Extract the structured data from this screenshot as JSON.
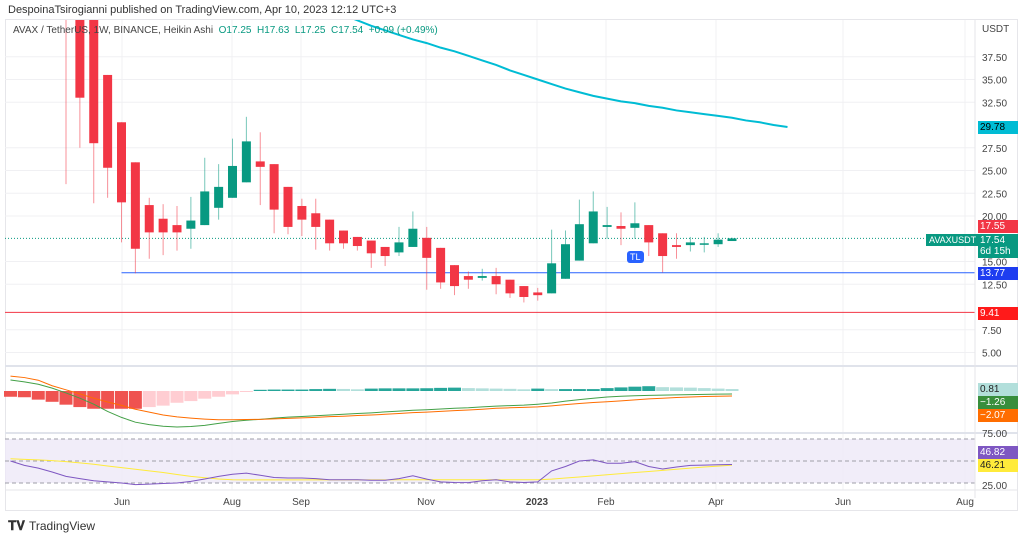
{
  "header": {
    "published": "DespoinaTsirogianni published on TradingView.com, Apr 10, 2023 12:12 UTC+3"
  },
  "legend": {
    "symbol": "AVAX / TetherUS, 1W, BINANCE, Heikin Ashi",
    "open": "O17.25",
    "high": "H17.63",
    "low": "L17.25",
    "close": "C17.54",
    "change": "+0.09 (+0.49%)"
  },
  "colors": {
    "up": "#089981",
    "down": "#f23645",
    "ma": "#00bcd4",
    "support": "#2962ff",
    "floor": "#f23645",
    "macd": "#43a047",
    "signal": "#ff6d00",
    "rsi": "#7e57c2",
    "rsi_ma": "#ffeb3b"
  },
  "price_axis": {
    "currency": "USDT",
    "ticks": [
      "37.50",
      "35.00",
      "32.50",
      "27.50",
      "25.00",
      "22.50",
      "20.00",
      "15.00",
      "12.50",
      "7.50",
      "5.00"
    ]
  },
  "price_labels": {
    "ma": "29.78",
    "high_prev": "17.55",
    "symbol": "AVAXUSDT",
    "last": "17.54",
    "countdown": "6d 15h",
    "support": "13.77",
    "floor": "9.41"
  },
  "levels": {
    "support": 13.77,
    "floor": 9.41,
    "last": 17.54
  },
  "tl_badge": "TL",
  "macd_labels": {
    "histogram": "0.81",
    "macd": "−1.26",
    "signal": "−2.07"
  },
  "rsi_axis": {
    "top": "75.00",
    "bottom": "25.00",
    "rsi": "46.82",
    "rsi_ma": "46.21"
  },
  "time_axis": [
    "Jun",
    "Aug",
    "Sep",
    "Nov",
    "2023",
    "Feb",
    "Apr",
    "Jun",
    "Aug"
  ],
  "footer": {
    "brand": "TradingView"
  },
  "chart_data": {
    "type": "candlestick",
    "interval": "1W",
    "candles_ohlc": [
      [
        43.5,
        47,
        23.5,
        42.3
      ],
      [
        43,
        45,
        27.5,
        33
      ],
      [
        43,
        44,
        21.4,
        28
      ],
      [
        35.5,
        35.5,
        22,
        25.3
      ],
      [
        30.3,
        30.3,
        17.1,
        21.5
      ],
      [
        25.9,
        25.9,
        13.7,
        16.4
      ],
      [
        21.2,
        22,
        15.3,
        18.2
      ],
      [
        19.7,
        21.3,
        15.7,
        18.2
      ],
      [
        19,
        21.1,
        16.2,
        18.2
      ],
      [
        18.6,
        22.1,
        16.4,
        19.5
      ],
      [
        19,
        26.4,
        19,
        22.7
      ],
      [
        20.9,
        25.7,
        19.6,
        23.2
      ],
      [
        22,
        28.5,
        22,
        25.5
      ],
      [
        23.7,
        30.9,
        23.7,
        28.2
      ],
      [
        26,
        29.2,
        21.2,
        25.4
      ],
      [
        25.7,
        25.7,
        18.1,
        20.7
      ],
      [
        23.2,
        23.2,
        18,
        18.8
      ],
      [
        21.1,
        21.9,
        17.8,
        19.6
      ],
      [
        20.3,
        21.9,
        16.3,
        18.8
      ],
      [
        19.6,
        19.6,
        16.2,
        17
      ],
      [
        18.4,
        18.4,
        16.4,
        17
      ],
      [
        17.7,
        17.7,
        16.2,
        16.7
      ],
      [
        17.3,
        17.3,
        14.3,
        15.9
      ],
      [
        16.6,
        16.6,
        14.5,
        15.6
      ],
      [
        16,
        18.8,
        15.6,
        17.1
      ],
      [
        16.6,
        20.5,
        16.6,
        18.6
      ],
      [
        17.6,
        18.8,
        11.9,
        15.4
      ],
      [
        16.5,
        16.5,
        12,
        12.7
      ],
      [
        14.6,
        14.6,
        11.3,
        12.3
      ],
      [
        13.4,
        13.9,
        12,
        13
      ],
      [
        13.2,
        14.2,
        12.9,
        13.4
      ],
      [
        13.4,
        14.3,
        11.4,
        12.5
      ],
      [
        13,
        13,
        11,
        11.5
      ],
      [
        12.3,
        12.3,
        10.5,
        11.1
      ],
      [
        11.6,
        12.1,
        10.7,
        11.3
      ],
      [
        11.5,
        18.5,
        11.5,
        14.8
      ],
      [
        13.1,
        18.4,
        13.1,
        16.9
      ],
      [
        15.1,
        21.8,
        15.1,
        19.1
      ],
      [
        17,
        22.7,
        17,
        20.5
      ],
      [
        18.8,
        21,
        17.5,
        19
      ],
      [
        18.9,
        20.4,
        16.8,
        18.6
      ],
      [
        18.7,
        21.5,
        17.5,
        19.2
      ],
      [
        19,
        19,
        15.6,
        17.1
      ],
      [
        18.1,
        18.1,
        13.8,
        15.6
      ],
      [
        16.8,
        18.1,
        15.3,
        16.6
      ],
      [
        16.8,
        17.7,
        16.1,
        17.1
      ],
      [
        16.9,
        17.7,
        16,
        17
      ],
      [
        16.9,
        18.1,
        16.6,
        17.4
      ],
      [
        17.25,
        17.63,
        17.25,
        17.54
      ]
    ],
    "moving_average": [
      46,
      45,
      44,
      43,
      42.1,
      41.5,
      40.9,
      40.4,
      39.9,
      39.4,
      39,
      38.5,
      38.1,
      37.6,
      37.1,
      36.6,
      36,
      35.5,
      35,
      34.5,
      34,
      33.6,
      33.2,
      32.9,
      32.6,
      32.4,
      32.1,
      31.9,
      31.6,
      31.4,
      31.2,
      31,
      30.8,
      30.5,
      30.3,
      30,
      29.78
    ],
    "macd_histogram": [
      -2.4,
      -2.6,
      -3.6,
      -4.5,
      -5.7,
      -6.7,
      -7.4,
      -7.4,
      -7.4,
      -7.4,
      -6.7,
      -6.1,
      -4.9,
      -4.2,
      -3.2,
      -2.4,
      -1.4,
      -0.1,
      0.5,
      0.6,
      0.6,
      0.6,
      0.8,
      0.9,
      0.85,
      0.7,
      1.0,
      1.1,
      1.1,
      1.1,
      1.15,
      1.3,
      1.4,
      1.2,
      1.1,
      1.0,
      0.9,
      0.7,
      1.0,
      0.8,
      0.8,
      0.8,
      0.8,
      1.2,
      1.5,
      1.8,
      2.0,
      1.6,
      1.5,
      1.4,
      1.2,
      1.0,
      0.81
    ],
    "macd": [
      4.6,
      3.8,
      2.8,
      1.2,
      -0.8,
      -3,
      -5.5,
      -8.5,
      -11,
      -13,
      -14,
      -14.7,
      -15,
      -14.8,
      -14.3,
      -13.5,
      -12.7,
      -12.2,
      -11.8,
      -11.3,
      -10.9,
      -10.6,
      -10.3,
      -10,
      -9.7,
      -9.4,
      -9.1,
      -8.7,
      -8.4,
      -8,
      -7.8,
      -7.5,
      -7.2,
      -7,
      -6.6,
      -6.3,
      -6.1,
      -5.9,
      -5.5,
      -5,
      -4.2,
      -3.6,
      -3,
      -2.5,
      -2.2,
      -2,
      -1.8,
      -1.7,
      -1.6,
      -1.5,
      -1.4,
      -1.3,
      -1.26
    ],
    "signal": [
      6.2,
      5.6,
      4.5,
      2.2,
      0.5,
      -1.2,
      -3,
      -4.6,
      -6,
      -7.6,
      -8.8,
      -10,
      -10.8,
      -11.3,
      -11.7,
      -12,
      -12,
      -11.9,
      -11.8,
      -11.6,
      -11.4,
      -11.2,
      -11,
      -10.7,
      -10.5,
      -10.2,
      -10,
      -9.7,
      -9.4,
      -9,
      -8.8,
      -8.5,
      -8.2,
      -7.9,
      -7.6,
      -7.2,
      -7,
      -6.8,
      -6.6,
      -6.2,
      -5.7,
      -5.2,
      -4.8,
      -4.5,
      -4.1,
      -3.7,
      -3.3,
      -3,
      -2.7,
      -2.5,
      -2.3,
      -2.2,
      -2.07
    ],
    "rsi": [
      50,
      46,
      43.5,
      40,
      36,
      34,
      32,
      31,
      30,
      28.5,
      29,
      29.5,
      30,
      31.5,
      33.6,
      36,
      38,
      39,
      37,
      35,
      34.5,
      34.5,
      34,
      33,
      33,
      33,
      32.5,
      32.5,
      34,
      36.6,
      33.5,
      31,
      30.5,
      30.3,
      32,
      33,
      31,
      30.5,
      31,
      41,
      45,
      50,
      51,
      48,
      48,
      49.4,
      45,
      42.7,
      44.5,
      46,
      46.3,
      46.6,
      46.82
    ],
    "rsi_ma": [
      52,
      51.5,
      51,
      50.3,
      49.4,
      48.3,
      47,
      45.5,
      44,
      42.5,
      41,
      39.5,
      37.7,
      36,
      34.8,
      33.6,
      33,
      32.8,
      32.8,
      32.8,
      32.8,
      32.8,
      32.8,
      32.8,
      32.8,
      32.8,
      32.8,
      32.8,
      32.9,
      32.9,
      32.9,
      32.9,
      32.9,
      33,
      33,
      33,
      33,
      33,
      33,
      33.5,
      34.5,
      35.5,
      36.5,
      37.5,
      38.5,
      39.5,
      40.5,
      41.5,
      42.5,
      43.5,
      44.5,
      45.3,
      46.21
    ],
    "rsi_levels": [
      70,
      50,
      30
    ]
  }
}
